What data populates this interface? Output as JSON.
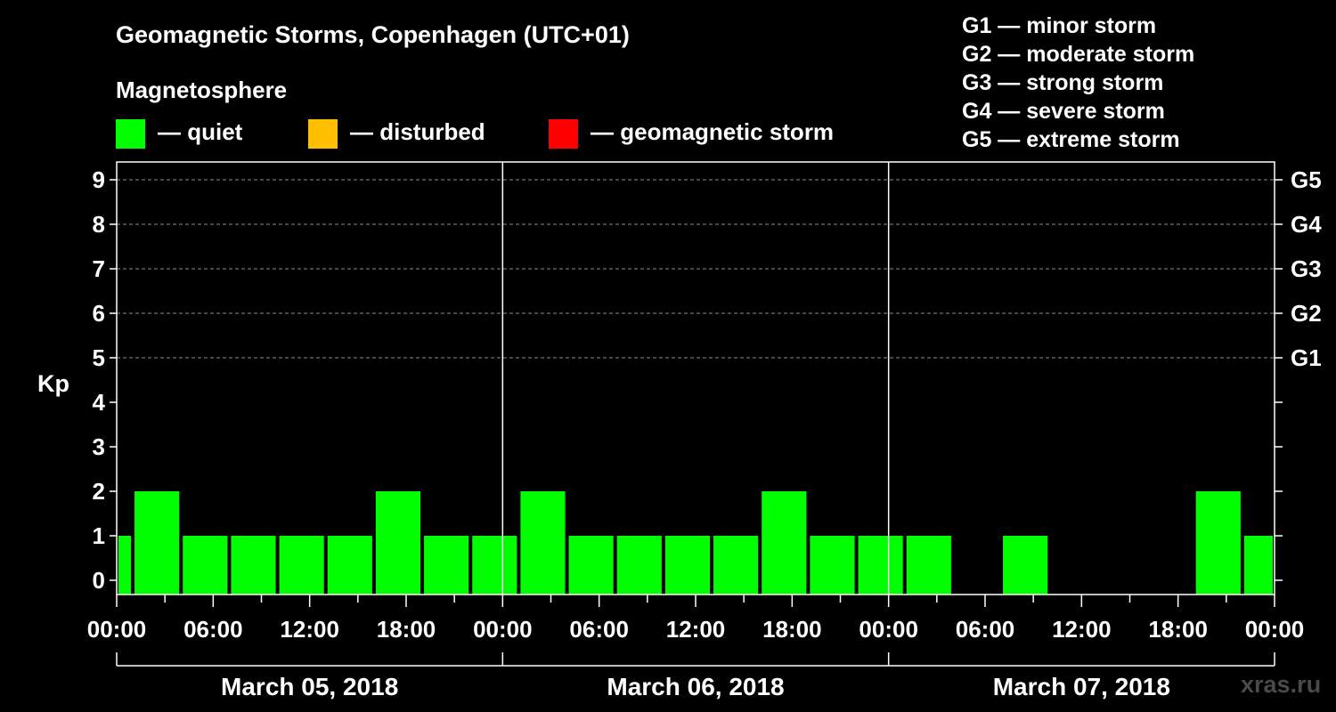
{
  "title": "Geomagnetic Storms, Copenhagen (UTC+01)",
  "magnetosphere": {
    "heading": "Magnetosphere",
    "legend": [
      {
        "label": "— quiet",
        "color": "#00ff00"
      },
      {
        "label": "— disturbed",
        "color": "#ffbf00"
      },
      {
        "label": "— geomagnetic storm",
        "color": "#ff0000"
      }
    ]
  },
  "storm_scale": [
    "G1 — minor storm",
    "G2 — moderate storm",
    "G3 — strong storm",
    "G4 — severe storm",
    "G5 — extreme storm"
  ],
  "watermark": "xras.ru",
  "chart_data": {
    "type": "bar",
    "title": "Geomagnetic Storms, Copenhagen (UTC+01)",
    "ylabel": "Kp",
    "ylim": [
      0,
      9
    ],
    "yticks": [
      "0",
      "1",
      "2",
      "3",
      "4",
      "5",
      "6",
      "7",
      "8",
      "9"
    ],
    "right_axis_labels": [
      {
        "kp": 5,
        "label": "G1"
      },
      {
        "kp": 6,
        "label": "G2"
      },
      {
        "kp": 7,
        "label": "G3"
      },
      {
        "kp": 8,
        "label": "G4"
      },
      {
        "kp": 9,
        "label": "G5"
      }
    ],
    "xlim_hours": [
      0,
      72
    ],
    "xtick_labels": [
      "00:00",
      "06:00",
      "12:00",
      "18:00",
      "00:00",
      "06:00",
      "12:00",
      "18:00",
      "00:00",
      "06:00",
      "12:00",
      "18:00",
      "00:00"
    ],
    "days": [
      "March 05, 2018",
      "March 06, 2018",
      "March 07, 2018"
    ],
    "grid": "dashed horizontal lines at Kp 5-9",
    "bars": [
      {
        "start": 0,
        "end": 1,
        "kp": 1,
        "status": "quiet"
      },
      {
        "start": 1,
        "end": 4,
        "kp": 2,
        "status": "quiet"
      },
      {
        "start": 4,
        "end": 7,
        "kp": 1,
        "status": "quiet"
      },
      {
        "start": 7,
        "end": 10,
        "kp": 1,
        "status": "quiet"
      },
      {
        "start": 10,
        "end": 13,
        "kp": 1,
        "status": "quiet"
      },
      {
        "start": 13,
        "end": 16,
        "kp": 1,
        "status": "quiet"
      },
      {
        "start": 16,
        "end": 19,
        "kp": 2,
        "status": "quiet"
      },
      {
        "start": 19,
        "end": 22,
        "kp": 1,
        "status": "quiet"
      },
      {
        "start": 22,
        "end": 25,
        "kp": 1,
        "status": "quiet"
      },
      {
        "start": 25,
        "end": 28,
        "kp": 2,
        "status": "quiet"
      },
      {
        "start": 28,
        "end": 31,
        "kp": 1,
        "status": "quiet"
      },
      {
        "start": 31,
        "end": 34,
        "kp": 1,
        "status": "quiet"
      },
      {
        "start": 34,
        "end": 37,
        "kp": 1,
        "status": "quiet"
      },
      {
        "start": 37,
        "end": 40,
        "kp": 1,
        "status": "quiet"
      },
      {
        "start": 40,
        "end": 43,
        "kp": 2,
        "status": "quiet"
      },
      {
        "start": 43,
        "end": 46,
        "kp": 1,
        "status": "quiet"
      },
      {
        "start": 46,
        "end": 49,
        "kp": 1,
        "status": "quiet"
      },
      {
        "start": 49,
        "end": 52,
        "kp": 1,
        "status": "quiet"
      },
      {
        "start": 55,
        "end": 58,
        "kp": 1,
        "status": "quiet"
      },
      {
        "start": 67,
        "end": 70,
        "kp": 2,
        "status": "quiet"
      },
      {
        "start": 70,
        "end": 72,
        "kp": 1,
        "status": "quiet"
      }
    ]
  }
}
